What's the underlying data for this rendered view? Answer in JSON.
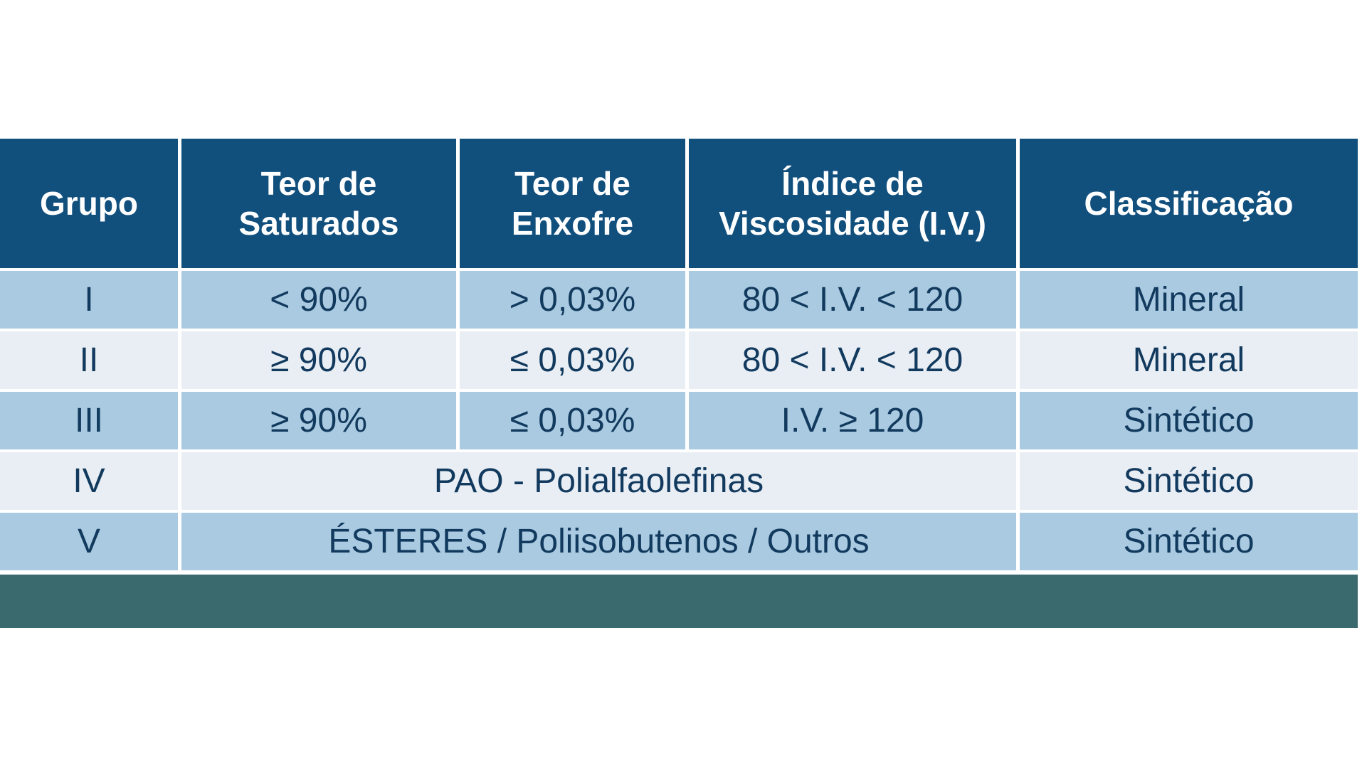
{
  "table": {
    "headers": [
      "Grupo",
      "Teor de\nSaturados",
      "Teor de\nEnxofre",
      "Índice de\nViscosidade (I.V.)",
      "Classificação"
    ],
    "rows": [
      {
        "grupo": "I",
        "saturados": "< 90%",
        "enxofre": "> 0,03%",
        "indice_viscosidade": "80 < I.V. < 120",
        "classificacao": "Mineral"
      },
      {
        "grupo": "II",
        "saturados": "≥ 90%",
        "enxofre": "≤ 0,03%",
        "indice_viscosidade": "80 < I.V. < 120",
        "classificacao": "Mineral"
      },
      {
        "grupo": "III",
        "saturados": "≥ 90%",
        "enxofre": "≤ 0,03%",
        "indice_viscosidade": "I.V. ≥ 120",
        "classificacao": "Sintético"
      },
      {
        "grupo": "IV",
        "descricao": "PAO - Polialfaolefinas",
        "classificacao": "Sintético"
      },
      {
        "grupo": "V",
        "descricao": "ÉSTERES / Poliisobutenos / Outros",
        "classificacao": "Sintético"
      }
    ],
    "colors": {
      "header_bg": "#114F7D",
      "header_text": "#FFFFFF",
      "row_odd_bg": "#A9CAE0",
      "row_even_bg": "#E9EEF4",
      "cell_text": "#123A5E",
      "footer_bar": "#3A696E"
    }
  }
}
